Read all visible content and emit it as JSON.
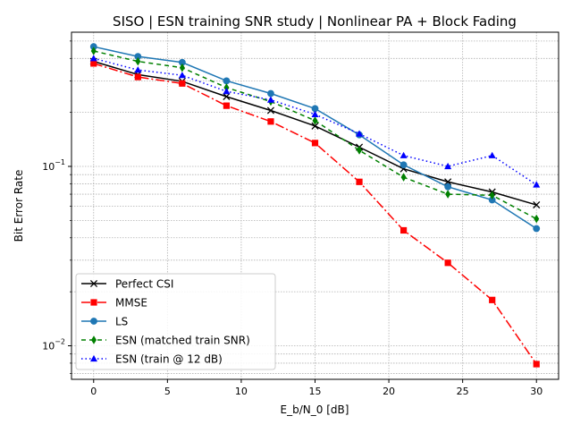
{
  "chart_data": {
    "type": "line",
    "title": "SISO | ESN training SNR study | Nonlinear PA + Block Fading",
    "xlabel": "E_b/N_0 [dB]",
    "ylabel": "Bit Error Rate",
    "xlim": [
      -1.5,
      31.5
    ],
    "ylim": [
      0.0065,
      0.56
    ],
    "yscale": "log",
    "grid": true,
    "legend_position": "lower-left",
    "x": [
      0,
      3,
      6,
      9,
      12,
      15,
      18,
      21,
      24,
      27,
      30
    ],
    "x_ticks": [
      0,
      5,
      10,
      15,
      20,
      25,
      30
    ],
    "x_tick_labels": [
      "0",
      "5",
      "10",
      "15",
      "20",
      "25",
      "30"
    ],
    "y_ticks": [
      0.01,
      0.1
    ],
    "y_tick_labels": [
      "10^-2",
      "10^-1"
    ],
    "series": [
      {
        "name": "Perfect CSI",
        "color": "#000000",
        "marker": "x",
        "dash": "",
        "values": [
          0.385,
          0.325,
          0.298,
          0.245,
          0.205,
          0.168,
          0.128,
          0.097,
          0.082,
          0.072,
          0.061
        ]
      },
      {
        "name": "MMSE",
        "color": "#ff0000",
        "marker": "square",
        "dash": "10 3 2 3",
        "values": [
          0.375,
          0.315,
          0.29,
          0.218,
          0.178,
          0.135,
          0.082,
          0.044,
          0.029,
          0.018,
          0.0079
        ]
      },
      {
        "name": "LS",
        "color": "#1f77b4",
        "marker": "circle",
        "dash": "",
        "values": [
          0.465,
          0.41,
          0.38,
          0.3,
          0.255,
          0.21,
          0.15,
          0.102,
          0.077,
          0.065,
          0.045
        ]
      },
      {
        "name": "ESN (matched train SNR)",
        "color": "#008000",
        "marker": "diamond",
        "dash": "5 4",
        "values": [
          0.44,
          0.385,
          0.355,
          0.275,
          0.23,
          0.18,
          0.123,
          0.087,
          0.07,
          0.069,
          0.051
        ]
      },
      {
        "name": "ESN (train @ 12 dB)",
        "color": "#0000ff",
        "marker": "triangle",
        "dash": "1.5 3",
        "values": [
          0.4,
          0.345,
          0.322,
          0.262,
          0.235,
          0.195,
          0.152,
          0.115,
          0.1,
          0.115,
          0.079
        ]
      }
    ]
  }
}
